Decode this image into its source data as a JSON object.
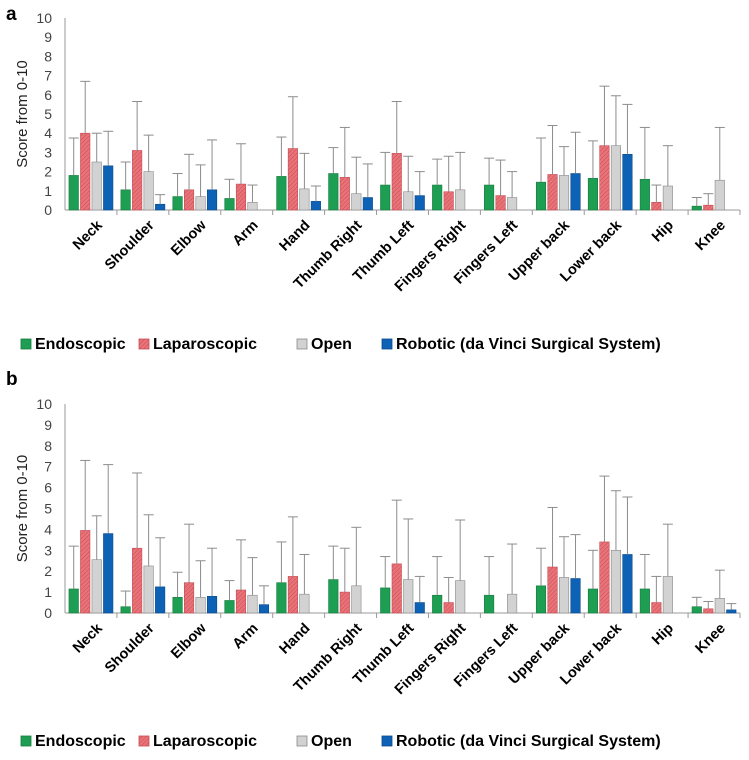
{
  "chart_data": [
    {
      "panel": "a",
      "type": "bar",
      "ylabel": "Score from 0-10",
      "ylim": [
        0,
        10
      ],
      "yticks": [
        "0",
        "1",
        "2",
        "3",
        "4",
        "5",
        "6",
        "7",
        "8",
        "9",
        "10"
      ],
      "grid": false,
      "categories": [
        "Neck",
        "Shoulder",
        "Elbow",
        "Arm",
        "Hand",
        "Thumb Right",
        "Thumb Left",
        "Fingers Right",
        "Fingers Left",
        "Upper back",
        "Lower back",
        "Hip",
        "Knee"
      ],
      "series": [
        {
          "name": "Endoscopic",
          "color": "#1e9e52",
          "values": [
            1.8,
            1.05,
            0.7,
            0.6,
            1.75,
            1.9,
            1.3,
            1.3,
            1.3,
            1.45,
            1.65,
            1.6,
            0.2
          ],
          "errors": [
            1.95,
            1.45,
            1.2,
            1.0,
            2.05,
            1.35,
            1.7,
            1.35,
            1.4,
            2.3,
            1.95,
            2.7,
            0.45
          ]
        },
        {
          "name": "Laparoscopic",
          "color": "#e8747a",
          "values": [
            4.0,
            3.1,
            1.05,
            1.35,
            3.2,
            1.7,
            2.95,
            0.95,
            0.75,
            1.85,
            3.35,
            0.4,
            0.25
          ],
          "errors": [
            2.7,
            2.55,
            1.85,
            2.1,
            2.7,
            2.6,
            2.7,
            1.85,
            1.85,
            2.55,
            3.1,
            0.9,
            0.6
          ]
        },
        {
          "name": "Open",
          "color": "#d2d2d2",
          "values": [
            2.5,
            2.0,
            0.7,
            0.4,
            1.1,
            0.85,
            0.95,
            1.05,
            0.65,
            1.8,
            3.35,
            1.25,
            1.55
          ],
          "errors": [
            1.5,
            1.9,
            1.65,
            0.9,
            1.85,
            1.9,
            1.85,
            1.95,
            1.35,
            1.5,
            2.6,
            2.1,
            2.75
          ]
        },
        {
          "name": "Robotic (da Vinci Surgical System)",
          "color": "#0e62b5",
          "values": [
            2.3,
            0.3,
            1.05,
            null,
            0.45,
            0.65,
            0.75,
            null,
            null,
            1.9,
            2.9,
            null,
            null
          ],
          "errors": [
            1.8,
            0.5,
            2.6,
            null,
            0.8,
            1.75,
            1.25,
            null,
            null,
            2.15,
            2.6,
            null,
            null
          ]
        }
      ]
    },
    {
      "panel": "b",
      "type": "bar",
      "ylabel": "Score from 0-10",
      "ylim": [
        0,
        10
      ],
      "yticks": [
        "0",
        "1",
        "2",
        "3",
        "4",
        "5",
        "6",
        "7",
        "8",
        "9",
        "10"
      ],
      "grid": false,
      "categories": [
        "Neck",
        "Shoulder",
        "Elbow",
        "Arm",
        "Hand",
        "Thumb Right",
        "Thumb Left",
        "Fingers Right",
        "Fingers Left",
        "Upper back",
        "Lower back",
        "Hip",
        "Knee"
      ],
      "series": [
        {
          "name": "Endoscopic",
          "color": "#1e9e52",
          "values": [
            1.15,
            0.3,
            0.75,
            0.6,
            1.45,
            1.6,
            1.2,
            0.85,
            0.85,
            1.3,
            1.15,
            1.15,
            0.3
          ],
          "errors": [
            2.05,
            0.75,
            1.2,
            0.95,
            1.95,
            1.6,
            1.5,
            1.85,
            1.85,
            1.8,
            1.85,
            1.65,
            0.45
          ]
        },
        {
          "name": "Laparoscopic",
          "color": "#e8747a",
          "values": [
            3.95,
            3.1,
            1.45,
            1.1,
            1.75,
            1.0,
            2.35,
            0.5,
            null,
            2.2,
            3.4,
            0.5,
            0.2
          ],
          "errors": [
            3.35,
            3.6,
            2.8,
            2.4,
            2.85,
            2.1,
            3.05,
            1.2,
            null,
            2.85,
            3.15,
            1.25,
            0.35
          ]
        },
        {
          "name": "Open",
          "color": "#d2d2d2",
          "values": [
            2.55,
            2.25,
            0.75,
            0.85,
            0.9,
            1.3,
            1.6,
            1.55,
            0.9,
            1.7,
            3.0,
            1.75,
            0.7
          ],
          "errors": [
            2.1,
            2.45,
            1.75,
            1.8,
            1.9,
            2.8,
            2.9,
            2.9,
            2.4,
            1.95,
            2.85,
            2.5,
            1.35
          ]
        },
        {
          "name": "Robotic (da Vinci Surgical System)",
          "color": "#0e62b5",
          "values": [
            3.8,
            1.25,
            0.8,
            0.4,
            null,
            null,
            0.5,
            null,
            null,
            1.65,
            2.8,
            null,
            0.15
          ],
          "errors": [
            3.3,
            2.35,
            2.3,
            0.9,
            null,
            null,
            1.25,
            null,
            null,
            2.1,
            2.75,
            null,
            0.3
          ]
        }
      ]
    }
  ]
}
